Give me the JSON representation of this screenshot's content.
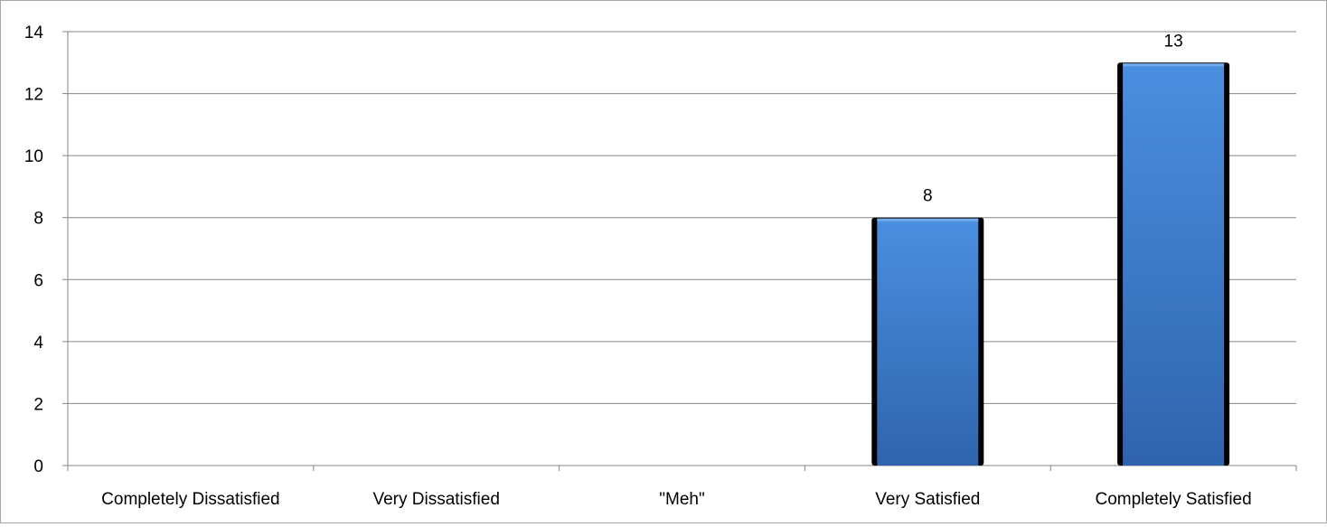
{
  "chart_data": {
    "type": "bar",
    "categories": [
      "Completely Dissatisfied",
      "Very Dissatisfied",
      "\"Meh\"",
      "Very Satisfied",
      "Completely Satisfied"
    ],
    "values": [
      0,
      0,
      0,
      8,
      13
    ],
    "data_labels": [
      "",
      "",
      "",
      "8",
      "13"
    ],
    "title": "",
    "xlabel": "",
    "ylabel": "",
    "ylim": [
      0,
      14
    ],
    "yticks": [
      0,
      2,
      4,
      6,
      8,
      10,
      12,
      14
    ],
    "ytick_labels": [
      "0",
      "2",
      "4",
      "6",
      "8",
      "10",
      "12",
      "14"
    ],
    "grid": true,
    "legend": "none",
    "colors": {
      "bar_top": "#4a8fe0",
      "bar_bottom": "#2f64ad",
      "bar_edge": "#000000",
      "gridline": "#868686",
      "axis": "#868686"
    }
  }
}
